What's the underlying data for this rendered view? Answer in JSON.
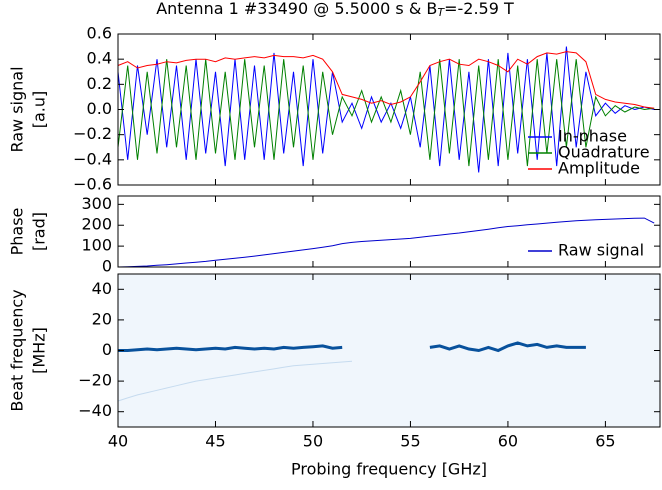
{
  "chart_data": [
    {
      "type": "line",
      "title": [
        "Antenna 1 #33490 @ 5.5000 s & B",
        "T",
        "=-2.59 T"
      ],
      "ylabel": [
        "Raw signal",
        "[a.u]"
      ],
      "xlim": [
        40,
        67.8
      ],
      "ylim": [
        -0.6,
        0.6
      ],
      "yticks": [
        {
          "value": -0.6,
          "label": "−0.6"
        },
        {
          "value": -0.4,
          "label": "−0.4"
        },
        {
          "value": -0.2,
          "label": "−0.2"
        },
        {
          "value": 0,
          "label": "0.0"
        },
        0.2,
        0.4,
        0.6
      ],
      "legend": "lower right",
      "x": [
        40,
        40.5,
        41,
        41.5,
        42,
        42.5,
        43,
        43.5,
        44,
        44.5,
        45,
        45.5,
        46,
        46.5,
        47,
        47.5,
        48,
        48.5,
        49,
        49.5,
        50,
        50.5,
        51,
        51.5,
        52,
        52.5,
        53,
        53.5,
        54,
        54.5,
        55,
        55.5,
        56,
        56.5,
        57,
        57.5,
        58,
        58.5,
        59,
        59.5,
        60,
        60.5,
        61,
        61.5,
        62,
        62.5,
        63,
        63.5,
        64,
        64.5,
        65,
        65.5,
        66,
        66.5,
        67,
        67.5
      ],
      "series": [
        {
          "name": "In-phase",
          "color": "#0000ff",
          "values": [
            0.3,
            -0.4,
            0.35,
            -0.2,
            0.4,
            -0.3,
            0.35,
            -0.4,
            0.4,
            -0.35,
            0.3,
            -0.45,
            0.4,
            -0.4,
            0.35,
            -0.4,
            0.45,
            -0.35,
            0.3,
            -0.45,
            0.4,
            -0.35,
            0.3,
            -0.1,
            0.05,
            -0.15,
            0.1,
            -0.1,
            0.05,
            -0.15,
            0.1,
            -0.3,
            0.35,
            -0.45,
            0.4,
            -0.4,
            0.3,
            -0.5,
            0.4,
            -0.45,
            0.45,
            -0.35,
            0.4,
            -0.4,
            0.45,
            -0.45,
            0.5,
            -0.3,
            0.3,
            -0.05,
            0.05,
            -0.03,
            0.03,
            0,
            0.02,
            0
          ]
        },
        {
          "name": "Quadrature",
          "color": "#008000",
          "values": [
            -0.3,
            0.35,
            -0.4,
            0.3,
            -0.35,
            0.4,
            -0.3,
            0.35,
            -0.4,
            0.4,
            -0.35,
            0.3,
            -0.4,
            0.4,
            -0.3,
            0.35,
            -0.4,
            0.4,
            -0.3,
            0.35,
            -0.4,
            0.3,
            -0.2,
            0.1,
            -0.05,
            0.15,
            -0.1,
            0.1,
            -0.1,
            0.15,
            -0.2,
            0.3,
            -0.4,
            0.4,
            -0.35,
            0.4,
            -0.45,
            0.35,
            -0.4,
            0.4,
            -0.4,
            0.35,
            -0.45,
            0.4,
            -0.35,
            0.4,
            -0.3,
            0.4,
            -0.3,
            0.1,
            -0.05,
            0.03,
            -0.02,
            0.02,
            0,
            0.01
          ]
        },
        {
          "name": "Amplitude",
          "color": "#ff0000",
          "values": [
            0.35,
            0.38,
            0.33,
            0.35,
            0.36,
            0.38,
            0.37,
            0.39,
            0.4,
            0.4,
            0.38,
            0.41,
            0.4,
            0.41,
            0.42,
            0.41,
            0.43,
            0.42,
            0.42,
            0.41,
            0.43,
            0.4,
            0.3,
            0.12,
            0.1,
            0.08,
            0.05,
            0.07,
            0.04,
            0.06,
            0.1,
            0.22,
            0.35,
            0.38,
            0.4,
            0.36,
            0.35,
            0.4,
            0.38,
            0.35,
            0.3,
            0.4,
            0.36,
            0.42,
            0.45,
            0.44,
            0.46,
            0.45,
            0.38,
            0.12,
            0.08,
            0.06,
            0.05,
            0.04,
            0.02,
            0.01
          ]
        }
      ]
    },
    {
      "type": "line",
      "ylabel": [
        "Phase",
        "[rad]"
      ],
      "xlim": [
        40,
        67.8
      ],
      "ylim": [
        0,
        340
      ],
      "yticks": [
        0,
        100,
        200,
        300
      ],
      "legend": "lower right",
      "x": [
        40,
        40.5,
        41,
        41.5,
        42,
        42.5,
        43,
        43.5,
        44,
        44.5,
        45,
        45.5,
        46,
        46.5,
        47,
        47.5,
        48,
        48.5,
        49,
        49.5,
        50,
        50.5,
        51,
        51.5,
        52,
        52.5,
        53,
        53.5,
        54,
        54.5,
        55,
        55.5,
        56,
        56.5,
        57,
        57.5,
        58,
        58.5,
        59,
        59.5,
        60,
        60.5,
        61,
        61.5,
        62,
        62.5,
        63,
        63.5,
        64,
        64.5,
        65,
        65.5,
        66,
        66.5,
        67,
        67.5
      ],
      "series": [
        {
          "name": "Raw signal",
          "color": "#0000cc",
          "values": [
            0,
            1,
            3,
            5,
            8,
            11,
            15,
            19,
            23,
            27,
            32,
            37,
            42,
            47,
            52,
            58,
            64,
            70,
            76,
            82,
            88,
            95,
            102,
            112,
            118,
            122,
            125,
            128,
            131,
            134,
            137,
            142,
            148,
            153,
            158,
            163,
            169,
            175,
            181,
            188,
            194,
            198,
            202,
            206,
            210,
            214,
            218,
            221,
            224,
            226,
            228,
            230,
            232,
            233,
            234,
            210
          ]
        }
      ]
    },
    {
      "type": "line",
      "ylabel": [
        "Beat frequency",
        "[MHz]"
      ],
      "xlabel": "Probing frequency [GHz]",
      "xlim": [
        40,
        67.8
      ],
      "ylim": [
        -50,
        50
      ],
      "xticks": [
        40,
        45,
        50,
        55,
        60,
        65
      ],
      "yticks": [
        {
          "value": -40,
          "label": "−40"
        },
        {
          "value": -20,
          "label": "−20"
        },
        0,
        20,
        40
      ],
      "x": [
        40,
        40.5,
        41,
        41.5,
        42,
        42.5,
        43,
        43.5,
        44,
        44.5,
        45,
        45.5,
        46,
        46.5,
        47,
        47.5,
        48,
        48.5,
        49,
        49.5,
        50,
        50.5,
        51,
        51.5,
        52,
        52.5,
        53,
        53.5,
        54,
        54.5,
        55,
        55.5,
        56,
        56.5,
        57,
        57.5,
        58,
        58.5,
        59,
        59.5,
        60,
        60.5,
        61,
        61.5,
        62,
        62.5,
        63,
        63.5,
        64,
        64.5,
        65,
        65.5,
        66,
        66.5,
        67,
        67.5
      ],
      "series": [
        {
          "color": "#08519c",
          "values": [
            0,
            0,
            0.5,
            1,
            0.5,
            1,
            1.5,
            1,
            0.5,
            1,
            1.5,
            1,
            2,
            1.5,
            1,
            1.5,
            1,
            2,
            1.5,
            2,
            2.5,
            3,
            1.5,
            2,
            null,
            null,
            null,
            null,
            1,
            null,
            null,
            null,
            2,
            3,
            1,
            3,
            1,
            0,
            2,
            0,
            3,
            5,
            3,
            4,
            2,
            3,
            2,
            2,
            2,
            null,
            null,
            null,
            null,
            null,
            null,
            null
          ]
        },
        {
          "color": "#c6dbef",
          "values": [
            -33,
            -31,
            -29,
            -27.5,
            -26,
            -24.5,
            -23,
            -21.5,
            -20,
            -19,
            -18,
            -17,
            -16,
            -15,
            -14,
            -13,
            -12,
            -11,
            -10,
            -9.5,
            -9,
            -8.5,
            -8,
            -7.5,
            -7,
            null,
            null,
            null,
            null,
            null,
            null,
            null,
            null,
            null,
            null,
            null,
            null,
            null,
            null,
            null,
            null,
            null,
            null,
            null,
            null,
            null,
            null,
            null,
            null,
            null,
            null,
            null,
            null,
            null,
            null,
            null
          ]
        }
      ]
    }
  ]
}
